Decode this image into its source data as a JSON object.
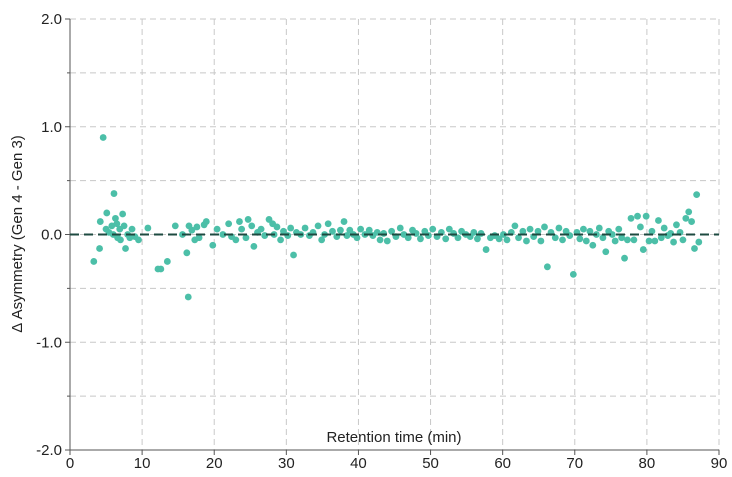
{
  "chart_data": {
    "type": "scatter",
    "title": "",
    "xlabel": "Retention time (min)",
    "ylabel": "Δ Asymmetry (Gen 4 - Gen 3)",
    "xlim": [
      0,
      90
    ],
    "ylim": [
      -2.0,
      2.0
    ],
    "x_ticks": [
      0,
      10,
      20,
      30,
      40,
      50,
      60,
      70,
      80,
      90
    ],
    "x_tick_labels": [
      "0",
      "10",
      "20",
      "30",
      "40",
      "50",
      "60",
      "70",
      "80",
      "90"
    ],
    "y_ticks": [
      2.0,
      1.0,
      0.0,
      -1.0,
      -2.0
    ],
    "y_tick_labels": [
      "2.0",
      "1.0",
      "0.0",
      "-1.0",
      "-2.0"
    ],
    "y_minor_ticks": [
      1.5,
      0.5,
      -0.5,
      -1.5
    ],
    "grid": true,
    "reference_line": {
      "y": 0.0,
      "style": "dashed"
    },
    "colors": {
      "points": "#4cbfa8",
      "reference_line": "#1d4a40",
      "grid": "#c8c8c8"
    },
    "series": [
      {
        "points": [
          [
            3.3,
            -0.25
          ],
          [
            4.1,
            -0.13
          ],
          [
            4.2,
            0.12
          ],
          [
            4.6,
            0.9
          ],
          [
            5.0,
            0.05
          ],
          [
            5.1,
            0.2
          ],
          [
            5.4,
            0.02
          ],
          [
            5.8,
            0.08
          ],
          [
            6.0,
            0.0
          ],
          [
            6.1,
            0.38
          ],
          [
            6.3,
            0.15
          ],
          [
            6.5,
            0.1
          ],
          [
            6.6,
            -0.03
          ],
          [
            6.9,
            0.05
          ],
          [
            7.0,
            -0.05
          ],
          [
            7.3,
            0.19
          ],
          [
            7.5,
            0.08
          ],
          [
            7.7,
            -0.13
          ],
          [
            8.0,
            0.0
          ],
          [
            8.3,
            -0.03
          ],
          [
            8.6,
            0.05
          ],
          [
            9.0,
            -0.02
          ],
          [
            9.5,
            -0.05
          ],
          [
            10.8,
            0.06
          ],
          [
            12.2,
            -0.32
          ],
          [
            12.6,
            -0.32
          ],
          [
            13.5,
            -0.25
          ],
          [
            14.6,
            0.08
          ],
          [
            15.6,
            0.0
          ],
          [
            16.2,
            -0.17
          ],
          [
            16.4,
            -0.58
          ],
          [
            16.5,
            0.08
          ],
          [
            16.9,
            0.04
          ],
          [
            17.3,
            -0.05
          ],
          [
            17.6,
            0.07
          ],
          [
            17.9,
            -0.03
          ],
          [
            18.6,
            0.09
          ],
          [
            18.9,
            0.12
          ],
          [
            19.8,
            -0.1
          ],
          [
            20.4,
            0.05
          ],
          [
            21.2,
            0.0
          ],
          [
            22.0,
            0.1
          ],
          [
            22.4,
            -0.02
          ],
          [
            23.0,
            -0.05
          ],
          [
            23.5,
            0.12
          ],
          [
            23.8,
            0.05
          ],
          [
            24.4,
            -0.03
          ],
          [
            24.7,
            0.14
          ],
          [
            25.2,
            0.08
          ],
          [
            25.5,
            -0.11
          ],
          [
            26.0,
            0.02
          ],
          [
            26.5,
            0.05
          ],
          [
            27.0,
            -0.01
          ],
          [
            27.6,
            0.14
          ],
          [
            28.1,
            0.1
          ],
          [
            28.3,
            0.0
          ],
          [
            28.7,
            0.07
          ],
          [
            29.2,
            -0.05
          ],
          [
            29.6,
            0.03
          ],
          [
            30.2,
            -0.01
          ],
          [
            30.6,
            0.06
          ],
          [
            31.0,
            -0.19
          ],
          [
            31.4,
            0.02
          ],
          [
            32.0,
            0.0
          ],
          [
            32.6,
            0.06
          ],
          [
            33.2,
            -0.01
          ],
          [
            33.7,
            0.02
          ],
          [
            34.4,
            0.08
          ],
          [
            34.9,
            -0.05
          ],
          [
            35.3,
            0.0
          ],
          [
            35.8,
            0.1
          ],
          [
            36.4,
            0.03
          ],
          [
            37.0,
            -0.02
          ],
          [
            37.5,
            0.04
          ],
          [
            38.0,
            0.12
          ],
          [
            38.4,
            -0.01
          ],
          [
            38.8,
            0.04
          ],
          [
            39.3,
            0.0
          ],
          [
            39.8,
            -0.03
          ],
          [
            40.3,
            0.05
          ],
          [
            40.9,
            0.0
          ],
          [
            41.5,
            0.04
          ],
          [
            42.0,
            -0.01
          ],
          [
            42.6,
            0.02
          ],
          [
            43.0,
            -0.05
          ],
          [
            43.5,
            0.01
          ],
          [
            44.0,
            -0.06
          ],
          [
            44.6,
            0.03
          ],
          [
            45.2,
            -0.02
          ],
          [
            45.8,
            0.06
          ],
          [
            46.3,
            0.0
          ],
          [
            46.9,
            -0.03
          ],
          [
            47.5,
            0.04
          ],
          [
            48.0,
            0.01
          ],
          [
            48.6,
            -0.04
          ],
          [
            49.2,
            0.03
          ],
          [
            49.7,
            -0.01
          ],
          [
            50.3,
            0.05
          ],
          [
            50.9,
            -0.02
          ],
          [
            51.5,
            0.02
          ],
          [
            52.1,
            -0.04
          ],
          [
            52.6,
            0.05
          ],
          [
            53.2,
            0.01
          ],
          [
            53.8,
            -0.03
          ],
          [
            54.3,
            0.03
          ],
          [
            54.9,
            0.0
          ],
          [
            55.5,
            -0.02
          ],
          [
            56.0,
            0.02
          ],
          [
            56.5,
            -0.04
          ],
          [
            57.0,
            0.01
          ],
          [
            57.7,
            -0.14
          ],
          [
            58.3,
            -0.03
          ],
          [
            58.9,
            -0.01
          ],
          [
            59.5,
            -0.04
          ],
          [
            60.1,
            0.0
          ],
          [
            60.6,
            -0.05
          ],
          [
            61.2,
            0.02
          ],
          [
            61.7,
            0.08
          ],
          [
            62.2,
            -0.03
          ],
          [
            62.8,
            0.03
          ],
          [
            63.3,
            -0.06
          ],
          [
            63.8,
            0.05
          ],
          [
            64.3,
            -0.02
          ],
          [
            64.9,
            0.03
          ],
          [
            65.3,
            -0.06
          ],
          [
            65.8,
            0.07
          ],
          [
            66.2,
            -0.3
          ],
          [
            66.7,
            0.02
          ],
          [
            67.3,
            -0.03
          ],
          [
            67.8,
            0.06
          ],
          [
            68.3,
            -0.05
          ],
          [
            68.8,
            0.03
          ],
          [
            69.3,
            -0.01
          ],
          [
            69.8,
            -0.37
          ],
          [
            70.3,
            0.02
          ],
          [
            70.7,
            -0.04
          ],
          [
            71.2,
            0.05
          ],
          [
            71.6,
            -0.06
          ],
          [
            72.1,
            0.03
          ],
          [
            72.5,
            -0.1
          ],
          [
            73.0,
            0.0
          ],
          [
            73.4,
            0.06
          ],
          [
            73.9,
            -0.03
          ],
          [
            74.3,
            -0.16
          ],
          [
            74.7,
            0.03
          ],
          [
            75.2,
            0.0
          ],
          [
            75.6,
            -0.06
          ],
          [
            76.1,
            0.05
          ],
          [
            76.5,
            -0.03
          ],
          [
            76.9,
            -0.22
          ],
          [
            77.3,
            -0.05
          ],
          [
            77.8,
            0.15
          ],
          [
            78.2,
            -0.05
          ],
          [
            78.7,
            0.17
          ],
          [
            79.1,
            0.07
          ],
          [
            79.5,
            -0.14
          ],
          [
            79.9,
            0.17
          ],
          [
            80.3,
            -0.06
          ],
          [
            80.7,
            0.03
          ],
          [
            81.1,
            -0.06
          ],
          [
            81.6,
            0.13
          ],
          [
            82.0,
            -0.03
          ],
          [
            82.4,
            0.06
          ],
          [
            82.9,
            -0.01
          ],
          [
            83.3,
            0.01
          ],
          [
            83.7,
            -0.07
          ],
          [
            84.1,
            0.09
          ],
          [
            84.6,
            0.02
          ],
          [
            85.0,
            -0.05
          ],
          [
            85.4,
            0.15
          ],
          [
            85.8,
            0.21
          ],
          [
            86.2,
            0.12
          ],
          [
            86.6,
            -0.13
          ],
          [
            86.9,
            0.37
          ],
          [
            87.2,
            -0.07
          ]
        ]
      }
    ]
  }
}
